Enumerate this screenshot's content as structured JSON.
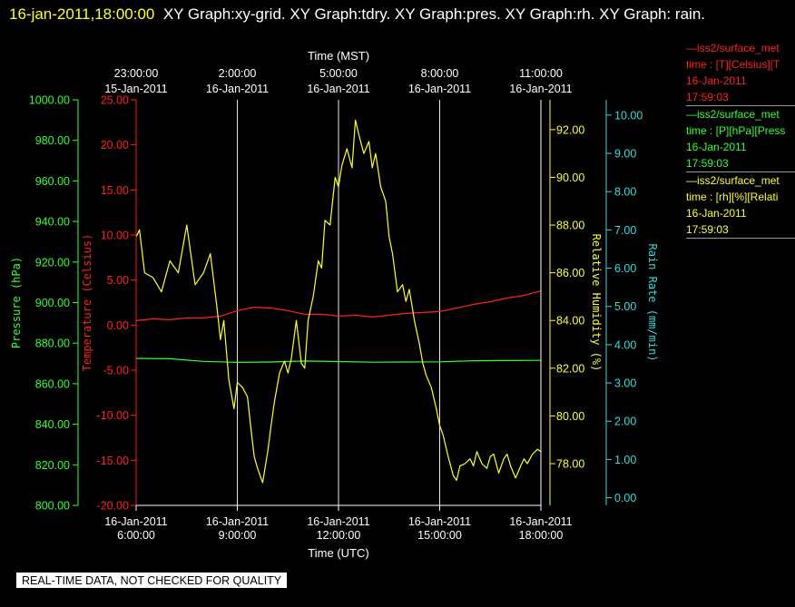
{
  "header": {
    "timestamp": "16-jan-2011,18:00:00",
    "title": "XY Graph:xy-grid.  XY Graph:tdry.  XY Graph:pres.  XY Graph:rh.  XY Graph: rain."
  },
  "legend": [
    {
      "line1": "—iss2/surface_met",
      "line2": "time : [T][Celsius][T",
      "line3": "16-Jan-2011",
      "line4": "17:59:03",
      "color": "#ff2020"
    },
    {
      "line1": "—iss2/surface_met",
      "line2": "time : [P][hPa][Press",
      "line3": "16-Jan-2011",
      "line4": "17:59:03",
      "color": "#33ff33"
    },
    {
      "line1": "—iss2/surface_met",
      "line2": "time : [rh][%][Relati",
      "line3": "16-Jan-2011",
      "line4": "17:59:03",
      "color": "#ffff33"
    }
  ],
  "notice": "REAL-TIME DATA, NOT CHECKED FOR QUALITY",
  "chart_data": {
    "type": "line",
    "x_top_label": "Time (MST)",
    "x_bottom_label": "Time (UTC)",
    "x_range_hours": [
      6.0,
      18.0
    ],
    "bottom_ticks": [
      {
        "t": 6.0,
        "line1": "16-Jan-2011",
        "line2": "6:00:00"
      },
      {
        "t": 9.0,
        "line1": "16-Jan-2011",
        "line2": "9:00:00"
      },
      {
        "t": 12.0,
        "line1": "16-Jan-2011",
        "line2": "12:00:00"
      },
      {
        "t": 15.0,
        "line1": "16-Jan-2011",
        "line2": "15:00:00"
      },
      {
        "t": 18.0,
        "line1": "16-Jan-2011",
        "line2": "18:00:00"
      }
    ],
    "top_ticks": [
      {
        "t": 6.0,
        "line1": "23:00:00",
        "line2": "15-Jan-2011"
      },
      {
        "t": 9.0,
        "line1": "2:00:00",
        "line2": "16-Jan-2011"
      },
      {
        "t": 12.0,
        "line1": "5:00:00",
        "line2": "16-Jan-2011"
      },
      {
        "t": 15.0,
        "line1": "8:00:00",
        "line2": "16-Jan-2011"
      },
      {
        "t": 18.0,
        "line1": "11:00:00",
        "line2": "16-Jan-2011"
      }
    ],
    "axes": {
      "pressure": {
        "label": "Pressure (hPa)",
        "min": 800,
        "max": 1000,
        "step": 20,
        "decimals": 2,
        "color": "#33ff33"
      },
      "temperature": {
        "label": "Temperature (Celsius)",
        "min": -20,
        "max": 25,
        "step": 5,
        "decimals": 2,
        "color": "#ff2020"
      },
      "humidity": {
        "label": "Relative Humidity (%)",
        "min": 76.25,
        "max": 93.25,
        "ticks": [
          78,
          80,
          82,
          84,
          86,
          88,
          90,
          92
        ],
        "decimals": 2,
        "color": "#ffff33"
      },
      "rain": {
        "label": "Rain Rate (mm/min)",
        "min": -0.2,
        "max": 10.4,
        "step": 1,
        "decimals": 2,
        "color": "#33dddd"
      }
    },
    "series": [
      {
        "name": "iss2/surface_met tdry",
        "axis": "temperature",
        "color": "#ff2020",
        "t": [
          6.0,
          6.5,
          7.0,
          7.5,
          8.0,
          8.5,
          9.0,
          9.5,
          10.0,
          10.5,
          11.0,
          11.5,
          12.0,
          12.5,
          13.0,
          13.5,
          14.0,
          14.5,
          15.0,
          15.5,
          16.0,
          16.5,
          17.0,
          17.5,
          18.0
        ],
        "v": [
          0.5,
          0.7,
          0.6,
          0.8,
          0.8,
          1.0,
          1.6,
          2.0,
          1.9,
          1.6,
          1.2,
          1.2,
          1.0,
          1.1,
          0.9,
          1.1,
          1.3,
          1.4,
          1.5,
          1.9,
          2.3,
          2.6,
          3.0,
          3.3,
          3.8
        ]
      },
      {
        "name": "iss2/surface_met pres",
        "axis": "pressure",
        "color": "#33ff33",
        "t": [
          6.0,
          7.0,
          8.0,
          9.0,
          10.0,
          11.0,
          12.0,
          13.0,
          14.0,
          15.0,
          16.0,
          17.0,
          18.0
        ],
        "v": [
          872.5,
          872.3,
          871.0,
          870.5,
          870.7,
          871.2,
          870.9,
          870.6,
          870.7,
          870.8,
          871.3,
          871.4,
          871.5
        ]
      },
      {
        "name": "iss2/surface_met rh",
        "axis": "humidity",
        "color": "#ffff33",
        "t": [
          6.0,
          6.1,
          6.25,
          6.5,
          6.75,
          7.0,
          7.25,
          7.5,
          7.75,
          8.0,
          8.2,
          8.4,
          8.5,
          8.6,
          8.75,
          8.9,
          9.0,
          9.15,
          9.3,
          9.4,
          9.5,
          9.6,
          9.75,
          9.9,
          10.0,
          10.1,
          10.25,
          10.4,
          10.5,
          10.6,
          10.75,
          10.9,
          11.0,
          11.1,
          11.25,
          11.4,
          11.5,
          11.6,
          11.75,
          11.9,
          12.0,
          12.1,
          12.25,
          12.4,
          12.5,
          12.6,
          12.75,
          12.9,
          13.0,
          13.1,
          13.25,
          13.4,
          13.5,
          13.6,
          13.75,
          13.9,
          14.0,
          14.1,
          14.25,
          14.4,
          14.5,
          14.6,
          14.75,
          14.9,
          15.0,
          15.1,
          15.25,
          15.4,
          15.5,
          15.6,
          15.75,
          15.9,
          16.0,
          16.1,
          16.25,
          16.4,
          16.5,
          16.6,
          16.75,
          16.9,
          17.0,
          17.1,
          17.25,
          17.4,
          17.5,
          17.6,
          17.75,
          17.9,
          18.0
        ],
        "v": [
          87.5,
          87.8,
          86.0,
          85.8,
          85.2,
          86.5,
          86.0,
          88.0,
          85.5,
          86.0,
          86.8,
          84.5,
          83.2,
          84.0,
          81.5,
          80.3,
          81.4,
          81.2,
          80.8,
          79.5,
          78.3,
          77.8,
          77.2,
          78.5,
          79.6,
          80.6,
          81.8,
          82.3,
          81.8,
          82.4,
          84.0,
          82.2,
          82.0,
          84.0,
          85.0,
          86.5,
          86.2,
          88.2,
          88.0,
          90.0,
          89.6,
          90.5,
          91.2,
          90.4,
          92.4,
          91.8,
          91.0,
          91.5,
          90.4,
          91.0,
          89.6,
          89.0,
          87.5,
          86.8,
          85.2,
          85.5,
          84.8,
          85.3,
          84.0,
          83.0,
          82.2,
          81.7,
          81.2,
          80.3,
          79.6,
          79.2,
          78.3,
          77.5,
          77.3,
          77.9,
          78.0,
          78.2,
          77.9,
          78.5,
          78.0,
          77.8,
          78.3,
          78.4,
          77.6,
          78.2,
          78.4,
          77.9,
          77.4,
          77.9,
          78.2,
          78.0,
          78.4,
          78.6,
          78.5
        ]
      }
    ],
    "grid": true
  }
}
